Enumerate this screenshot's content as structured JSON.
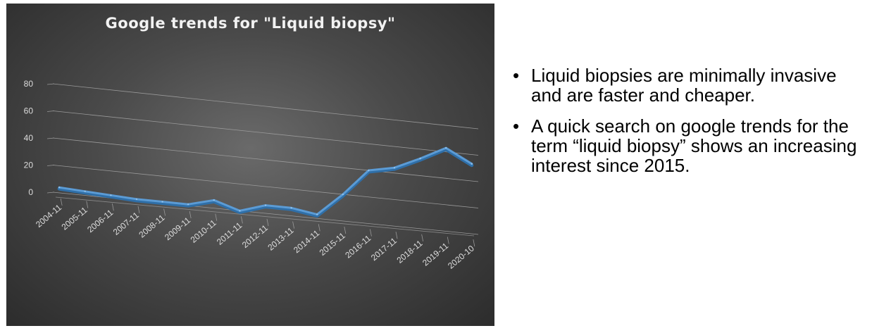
{
  "chart_data": {
    "type": "line",
    "title": "Google trends for \"Liquid biopsy\"",
    "categories": [
      "2004-11",
      "2005-11",
      "2006-11",
      "2007-11",
      "2008-11",
      "2009-11",
      "2010-11",
      "2011-11",
      "2012-11",
      "2013-11",
      "2014-11",
      "2015-11",
      "2016-11",
      "2017-11",
      "2018-11",
      "2019-11",
      "2020-10"
    ],
    "values": [
      4,
      3,
      2,
      1,
      1,
      1,
      6,
      0,
      6,
      6,
      3,
      20,
      40,
      44,
      53,
      63,
      53
    ],
    "y_ticks": [
      0,
      20,
      40,
      60,
      80
    ],
    "ylim": [
      0,
      80
    ],
    "grid": true,
    "line_color": "#5b9bd5"
  },
  "bullets": [
    "Liquid biopsies are minimally invasive and are faster and cheaper.",
    "A quick search on google trends for the term “liquid biopsy” shows an increasing interest since 2015."
  ],
  "bullet_symbol": "•"
}
